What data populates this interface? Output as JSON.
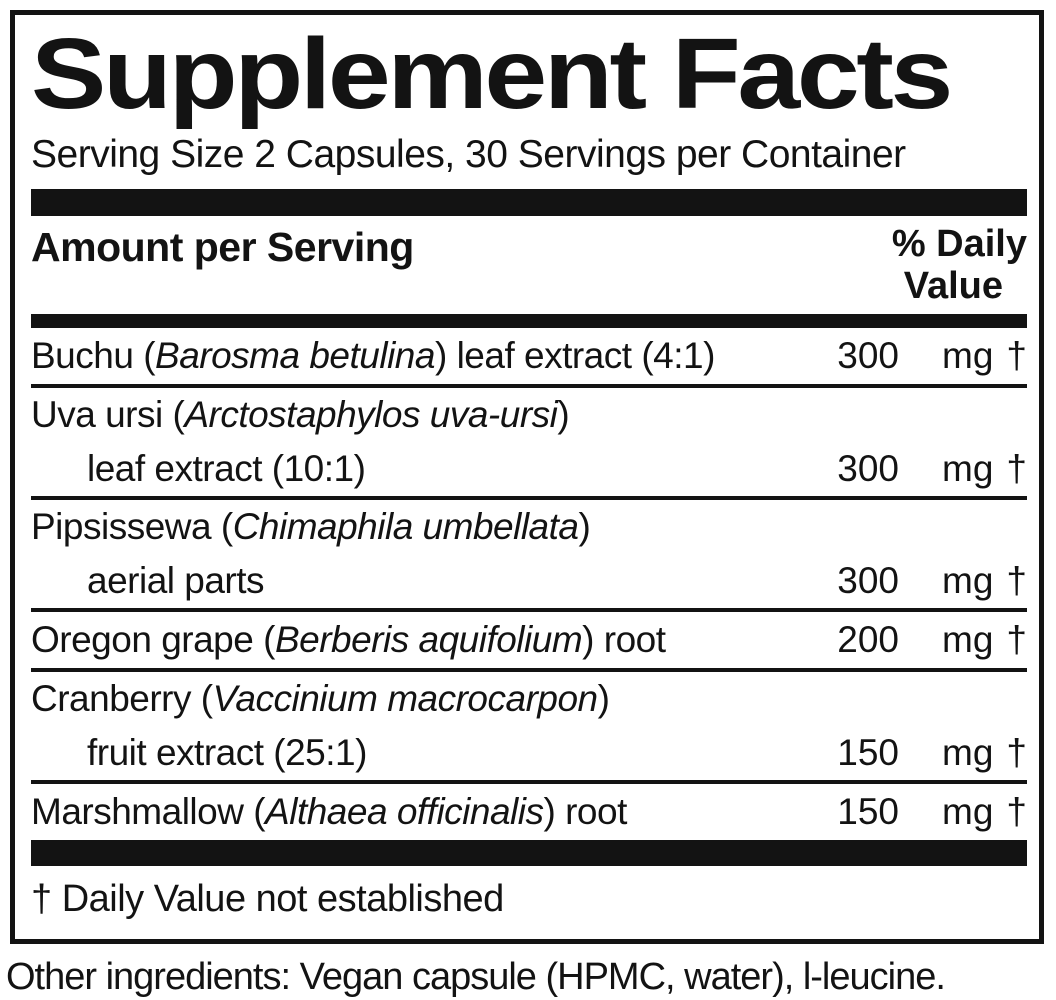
{
  "label": {
    "title": "Supplement Facts",
    "serving_line": "Serving Size 2 Capsules, 30 Servings per Container",
    "header": {
      "amount_col": "Amount per Serving",
      "dv_col_line1": "% Daily",
      "dv_col_line2": "Value"
    },
    "rows": [
      {
        "line1_pre": "Buchu (",
        "line1_latin": "Barosma betulina",
        "line1_post": ") leaf extract (4:1)",
        "line2": "",
        "amount": "300",
        "unit": "mg",
        "dv": "†"
      },
      {
        "line1_pre": "Uva ursi (",
        "line1_latin": "Arctostaphylos uva-ursi",
        "line1_post": ")",
        "line2": "leaf extract (10:1)",
        "amount": "300",
        "unit": "mg",
        "dv": "†"
      },
      {
        "line1_pre": "Pipsissewa (",
        "line1_latin": "Chimaphila umbellata",
        "line1_post": ")",
        "line2": "aerial parts",
        "amount": "300",
        "unit": "mg",
        "dv": "†"
      },
      {
        "line1_pre": "Oregon grape (",
        "line1_latin": "Berberis aquifolium",
        "line1_post": ") root",
        "line2": "",
        "amount": "200",
        "unit": "mg",
        "dv": "†"
      },
      {
        "line1_pre": "Cranberry (",
        "line1_latin": "Vaccinium macrocarpon",
        "line1_post": ")",
        "line2": "fruit extract (25:1)",
        "amount": "150",
        "unit": "mg",
        "dv": "†"
      },
      {
        "line1_pre": "Marshmallow (",
        "line1_latin": "Althaea officinalis",
        "line1_post": ") root",
        "line2": "",
        "amount": "150",
        "unit": "mg",
        "dv": "†"
      }
    ],
    "footnote": "† Daily Value not established",
    "other_ingredients": "Other ingredients: Vegan capsule (HPMC, water), l-leucine.",
    "colors": {
      "ink": "#131313",
      "background": "#ffffff"
    }
  }
}
